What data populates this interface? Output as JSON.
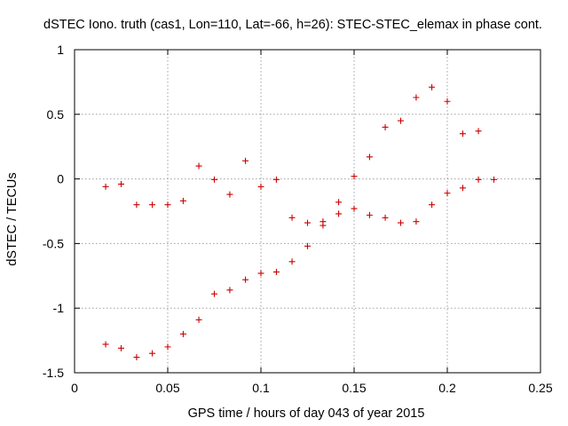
{
  "chart_data": {
    "type": "scatter",
    "title": "dSTEC Iono. truth (cas1, Lon=110, Lat=-66, h=26): STEC-STEC_elemax in phase cont.",
    "xlabel": "GPS time / hours of day 043 of year 2015",
    "ylabel": "dSTEC  / TECUs",
    "xlim": [
      0,
      0.25
    ],
    "ylim": [
      -1.5,
      1
    ],
    "x_ticks": [
      0,
      0.05,
      0.1,
      0.15,
      0.2,
      0.25
    ],
    "x_tick_labels": [
      "0",
      "0.05",
      "0.1",
      "0.15",
      "0.2",
      "0.25"
    ],
    "y_ticks": [
      -1.5,
      -1,
      -0.5,
      0,
      0.5,
      1
    ],
    "y_tick_labels": [
      "-1.5",
      "-1",
      "-0.5",
      "0",
      "0.5",
      "1"
    ],
    "grid": true,
    "marker": "plus",
    "marker_color": "#cc0000",
    "series": [
      {
        "name": "upper track",
        "x": [
          0.0167,
          0.025,
          0.0333,
          0.0417,
          0.05,
          0.0583,
          0.0667,
          0.075,
          0.0833,
          0.0917,
          0.1,
          0.1083,
          0.1167,
          0.125,
          0.1333,
          0.1417,
          0.15,
          0.1583,
          0.1667,
          0.175,
          0.1833,
          0.1917,
          0.2,
          0.2083,
          0.2167
        ],
        "y": [
          -0.06,
          -0.04,
          -0.2,
          -0.2,
          -0.2,
          -0.17,
          0.1,
          -0.005,
          -0.12,
          0.14,
          -0.06,
          -0.005,
          -0.3,
          -0.34,
          -0.33,
          -0.18,
          0.02,
          0.17,
          0.4,
          0.45,
          0.63,
          0.71,
          0.6,
          0.35,
          0.37
        ]
      },
      {
        "name": "lower track",
        "x": [
          0.0167,
          0.025,
          0.0333,
          0.0417,
          0.05,
          0.0583,
          0.0667,
          0.075,
          0.0833,
          0.0917,
          0.1,
          0.1083,
          0.1167,
          0.125,
          0.1333,
          0.1417,
          0.15,
          0.1583,
          0.1667,
          0.175,
          0.1833,
          0.1917,
          0.2,
          0.2083,
          0.2167,
          0.225
        ],
        "y": [
          -1.28,
          -1.31,
          -1.38,
          -1.35,
          -1.3,
          -1.2,
          -1.09,
          -0.89,
          -0.86,
          -0.78,
          -0.73,
          -0.72,
          -0.64,
          -0.52,
          -0.36,
          -0.27,
          -0.23,
          -0.28,
          -0.3,
          -0.34,
          -0.33,
          -0.2,
          -0.11,
          -0.07,
          -0.005,
          -0.005
        ]
      }
    ]
  }
}
